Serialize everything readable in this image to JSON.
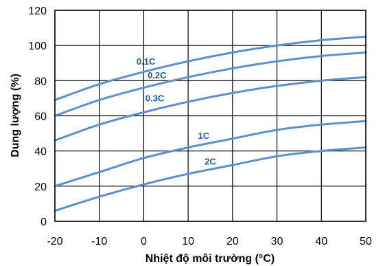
{
  "chart_data": {
    "type": "line",
    "xlabel": "Nhiệt độ môi trường (°C)",
    "ylabel": "Dung lượng (%)",
    "xlim": [
      -20,
      50
    ],
    "ylim": [
      0,
      120
    ],
    "x_ticks": [
      -20,
      -10,
      0,
      10,
      20,
      30,
      40,
      50
    ],
    "y_ticks": [
      0,
      20,
      40,
      60,
      80,
      100,
      120
    ],
    "grid": true,
    "line_color": "#5B8FD0",
    "label_color": "#1F5FA8",
    "x": [
      -20,
      -10,
      0,
      10,
      20,
      30,
      40,
      50
    ],
    "series": [
      {
        "name": "0.1C",
        "values": [
          69,
          78,
          85,
          91,
          96,
          100,
          103,
          105
        ]
      },
      {
        "name": "0.2C",
        "values": [
          60,
          69,
          76,
          82,
          87,
          91,
          94,
          96
        ]
      },
      {
        "name": "0.3C",
        "values": [
          46,
          55,
          62,
          68,
          73,
          77,
          80,
          82
        ]
      },
      {
        "name": "1C",
        "values": [
          20,
          28,
          36,
          42,
          47,
          52,
          55,
          57
        ]
      },
      {
        "name": "2C",
        "values": [
          6,
          14,
          21,
          27,
          32,
          37,
          40,
          42
        ]
      }
    ]
  }
}
